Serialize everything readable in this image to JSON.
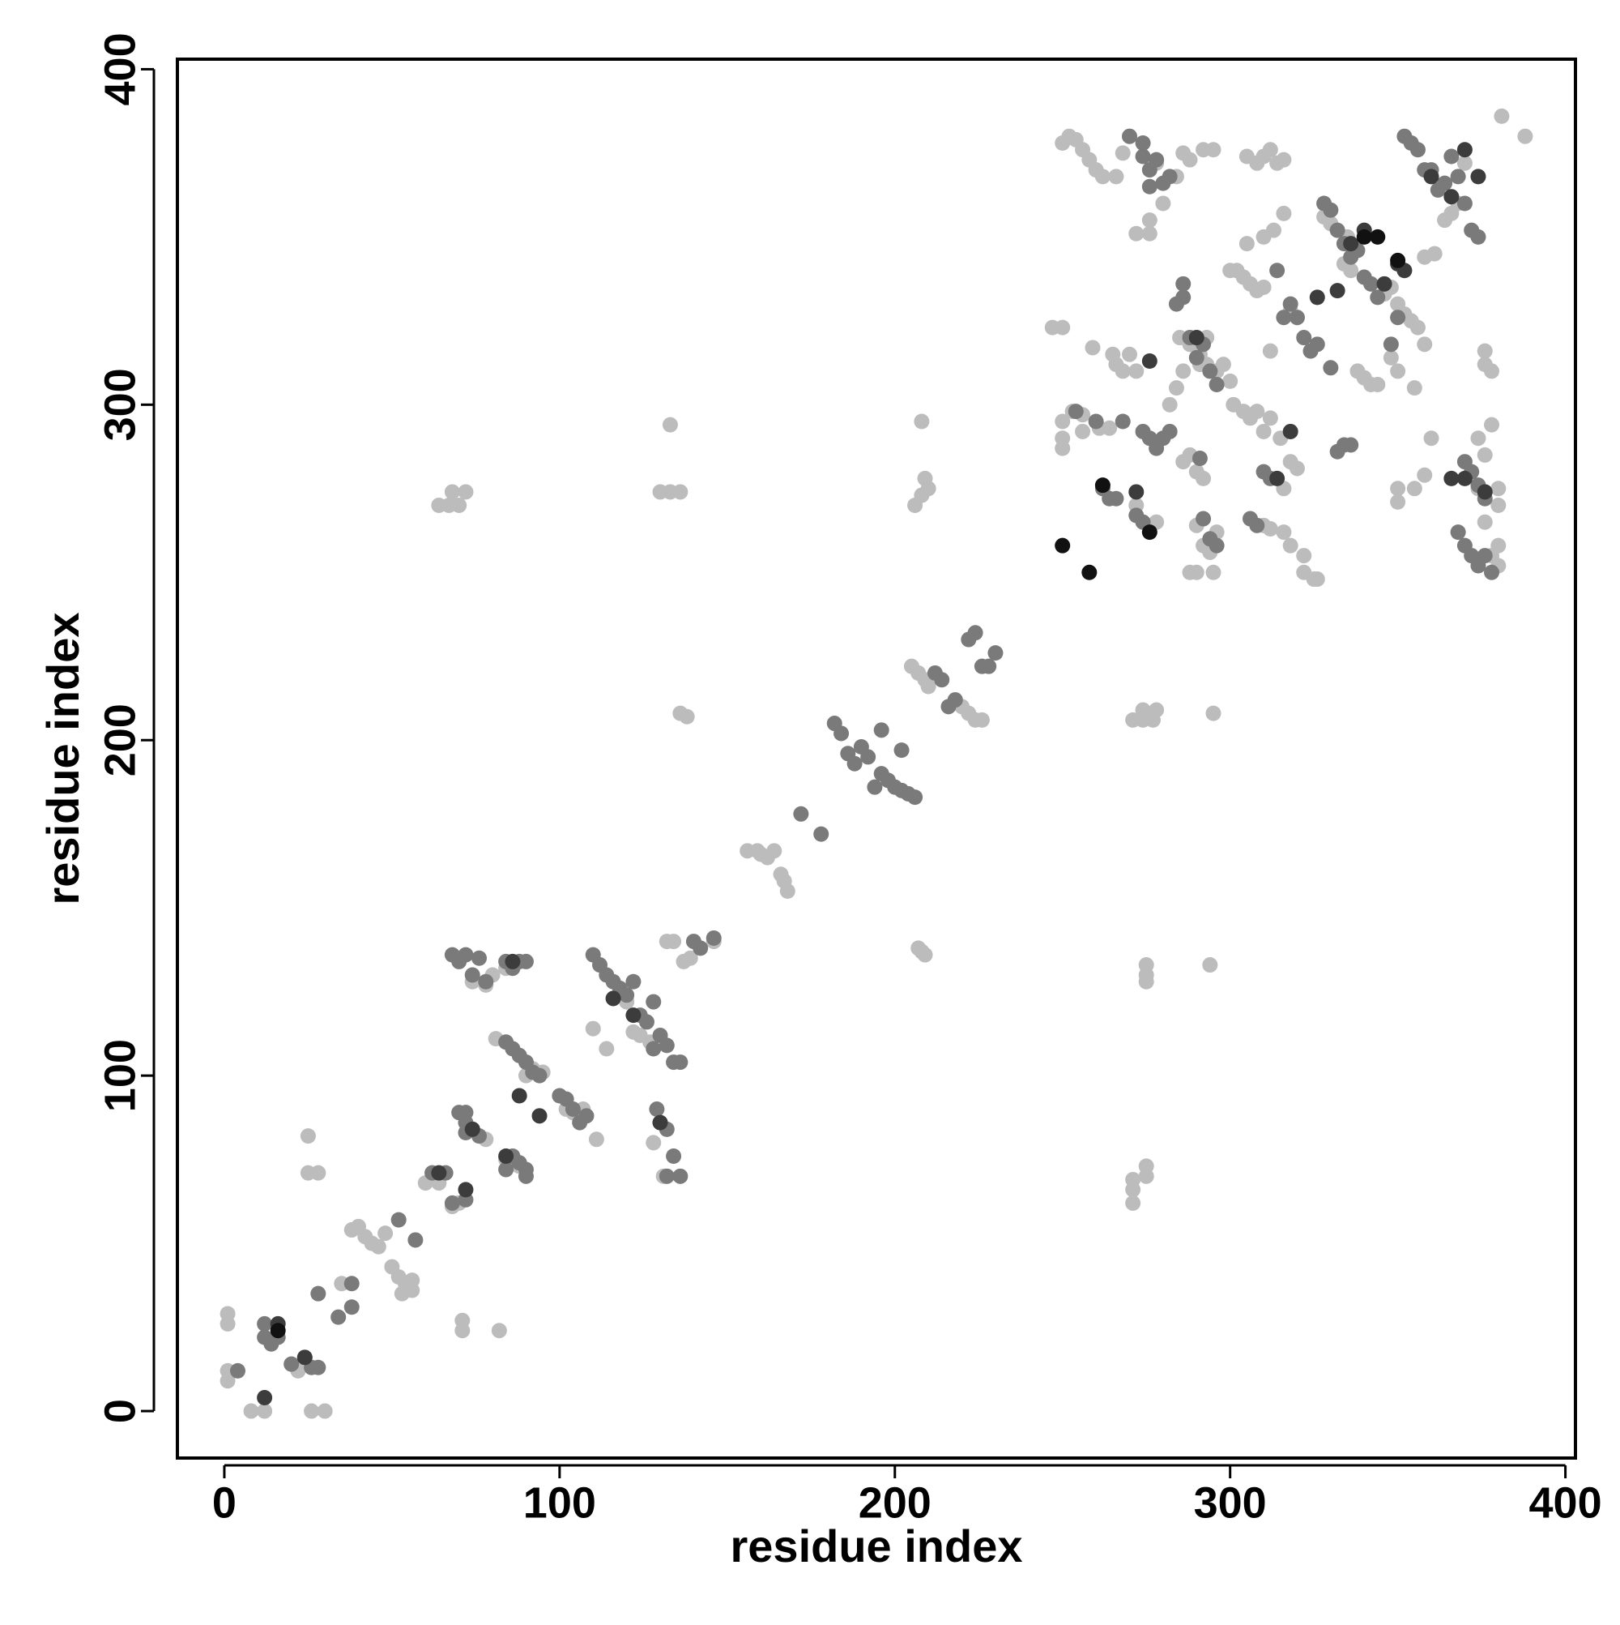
{
  "chart_data": {
    "type": "scatter",
    "x_label": "residue index",
    "y_label": "residue index",
    "xlim": [
      -14,
      403
    ],
    "ylim": [
      -14,
      403
    ],
    "xticks": [
      0,
      100,
      200,
      300,
      400
    ],
    "yticks": [
      0,
      100,
      200,
      300,
      400
    ],
    "grid": false,
    "series": [
      {
        "color": "#bcbcbc",
        "x": [
          1,
          1,
          1,
          1,
          8,
          12,
          26,
          30,
          25,
          25,
          28,
          20,
          22,
          35,
          38,
          40,
          42,
          44,
          46,
          48,
          50,
          52,
          54,
          56,
          56,
          53,
          60,
          64,
          68,
          70,
          71,
          71,
          82,
          81,
          74,
          78,
          80,
          84,
          76,
          78,
          70,
          84,
          86,
          88,
          90,
          92,
          95,
          102,
          104,
          106,
          107,
          110,
          111,
          114,
          118,
          120,
          122,
          124,
          127,
          128,
          131,
          132,
          134,
          130,
          133,
          136,
          133,
          136,
          138,
          64,
          67,
          70,
          68,
          72,
          156,
          159,
          160,
          164,
          162,
          166,
          167,
          168,
          137,
          139,
          146,
          208,
          207,
          209,
          205,
          207,
          209,
          210,
          218,
          220,
          222,
          224,
          226,
          208,
          210,
          206,
          209,
          208,
          271,
          274,
          277,
          274,
          278,
          275,
          275,
          271,
          271,
          271,
          275,
          275,
          275,
          294,
          295
        ],
        "values": [
          29,
          26,
          12,
          9,
          0,
          0,
          0,
          0,
          82,
          71,
          71,
          14,
          12,
          38,
          54,
          55,
          52,
          50,
          49,
          53,
          43,
          40,
          38,
          36,
          39,
          35,
          68,
          68,
          61,
          62,
          27,
          24,
          24,
          111,
          128,
          127,
          130,
          132,
          82,
          81,
          135,
          75,
          74,
          73,
          100,
          102,
          101,
          90,
          89,
          87,
          90,
          114,
          81,
          108,
          125,
          122,
          113,
          112,
          110,
          80,
          70,
          140,
          140,
          274,
          274,
          274,
          294,
          208,
          207,
          270,
          270,
          270,
          274,
          274,
          167,
          167,
          166,
          167,
          165,
          160,
          158,
          155,
          134,
          135,
          140,
          137,
          138,
          136,
          222,
          220,
          218,
          216,
          212,
          210,
          208,
          206,
          206,
          273,
          275,
          270,
          278,
          295,
          206,
          206,
          206,
          209,
          209,
          70,
          73,
          62,
          66,
          69,
          133,
          130,
          128,
          133,
          208
        ]
      },
      {
        "color": "#bcbcbc",
        "x": [
          247,
          250,
          250,
          250,
          250,
          253,
          256,
          256,
          259,
          261,
          264,
          265,
          266,
          268,
          270,
          272,
          250,
          252,
          254,
          256,
          258,
          260,
          262,
          266,
          268,
          270,
          272,
          276,
          276,
          278,
          280,
          284,
          286,
          288,
          292,
          295,
          272,
          278,
          282,
          284,
          286,
          288,
          291,
          293,
          290,
          292,
          290,
          292,
          294,
          296,
          288,
          290,
          295,
          286,
          288,
          300,
          302,
          304,
          306,
          308,
          310,
          312,
          310,
          313,
          316,
          318,
          320,
          305,
          301,
          304,
          306,
          308,
          312,
          310,
          315,
          318,
          320,
          316,
          310,
          312,
          316,
          318,
          322,
          322,
          325,
          326,
          328,
          330,
          335,
          334,
          336,
          338,
          340,
          342,
          344,
          346,
          348,
          350,
          352,
          354,
          356,
          358,
          348,
          350,
          355,
          358,
          361,
          350,
          350,
          355,
          358,
          360,
          364,
          366,
          368,
          370,
          374,
          376,
          374,
          376,
          378,
          380,
          380,
          376,
          376,
          378,
          378,
          380,
          380,
          381,
          388,
          305,
          308,
          310,
          312,
          314,
          316,
          285,
          288,
          291,
          293,
          296,
          298,
          300
        ],
        "values": [
          323,
          323,
          295,
          290,
          287,
          298,
          297,
          292,
          317,
          293,
          293,
          315,
          312,
          310,
          315,
          310,
          378,
          380,
          379,
          376,
          373,
          370,
          368,
          368,
          375,
          380,
          351,
          351,
          355,
          372,
          360,
          368,
          375,
          373,
          376,
          376,
          270,
          265,
          300,
          305,
          310,
          320,
          312,
          312,
          280,
          278,
          264,
          258,
          256,
          262,
          250,
          250,
          250,
          283,
          285,
          340,
          340,
          338,
          336,
          334,
          335,
          316,
          350,
          352,
          357,
          328,
          326,
          348,
          300,
          298,
          296,
          298,
          296,
          292,
          290,
          283,
          281,
          275,
          264,
          263,
          262,
          258,
          255,
          250,
          248,
          248,
          356,
          354,
          350,
          342,
          340,
          310,
          308,
          306,
          306,
          333,
          335,
          330,
          327,
          325,
          323,
          318,
          314,
          310,
          305,
          344,
          345,
          271,
          275,
          275,
          279,
          290,
          355,
          357,
          360,
          372,
          275,
          285,
          290,
          265,
          255,
          252,
          258,
          312,
          316,
          310,
          294,
          275,
          270,
          386,
          380,
          374,
          372,
          374,
          376,
          372,
          373,
          320,
          318,
          315,
          320,
          310,
          312,
          307
        ]
      },
      {
        "color": "#7a7a7a",
        "x": [
          4,
          12,
          12,
          14,
          16,
          20,
          24,
          26,
          28,
          28,
          34,
          38,
          38,
          52,
          57,
          62,
          66,
          68,
          72,
          72,
          70,
          72,
          72,
          74,
          76,
          68,
          70,
          72,
          74,
          76,
          78,
          84,
          86,
          88,
          90,
          84,
          86,
          88,
          90,
          92,
          94,
          84,
          86,
          88,
          90,
          90,
          100,
          102,
          104,
          106,
          108,
          110,
          112,
          114,
          116,
          118,
          120,
          122,
          124,
          126,
          128,
          128,
          130,
          132,
          134,
          136,
          129,
          130,
          132,
          134,
          132,
          136,
          140,
          146,
          142,
          172,
          178,
          182,
          184,
          186,
          188,
          190,
          192,
          194,
          196,
          198,
          200,
          202,
          204,
          206,
          196,
          202,
          212,
          214,
          216,
          218,
          222,
          224,
          226,
          228,
          230,
          254,
          260,
          262,
          264,
          266,
          268,
          270,
          274,
          276,
          274,
          276,
          278,
          280,
          282,
          274,
          276,
          278,
          280,
          282,
          272,
          274,
          284,
          286,
          286,
          288,
          290,
          292,
          294,
          296,
          291,
          292,
          294,
          296,
          306,
          308,
          310,
          312,
          314,
          316,
          318,
          320,
          322,
          324,
          326,
          328,
          330,
          332,
          334,
          336,
          338,
          330,
          332,
          334,
          336,
          340,
          342,
          344,
          348,
          350,
          352,
          354,
          356,
          360,
          362,
          364,
          366,
          368,
          370,
          372,
          374,
          370,
          372,
          374,
          376,
          368,
          370,
          372,
          374,
          376,
          378,
          358
        ],
        "values": [
          12,
          22,
          26,
          20,
          22,
          14,
          16,
          13,
          13,
          35,
          28,
          38,
          31,
          57,
          51,
          71,
          71,
          62,
          63,
          89,
          89,
          86,
          83,
          84,
          82,
          136,
          134,
          136,
          130,
          135,
          128,
          134,
          132,
          134,
          134,
          110,
          108,
          106,
          104,
          101,
          100,
          72,
          76,
          74,
          72,
          70,
          94,
          93,
          90,
          86,
          88,
          136,
          133,
          130,
          128,
          126,
          124,
          128,
          118,
          116,
          122,
          108,
          112,
          109,
          104,
          104,
          90,
          86,
          84,
          76,
          70,
          70,
          140,
          141,
          138,
          178,
          172,
          205,
          202,
          196,
          193,
          198,
          195,
          186,
          190,
          188,
          186,
          185,
          184,
          183,
          203,
          197,
          220,
          218,
          210,
          212,
          230,
          232,
          222,
          222,
          226,
          298,
          295,
          275,
          272,
          272,
          295,
          380,
          374,
          370,
          378,
          365,
          373,
          366,
          368,
          292,
          290,
          287,
          290,
          292,
          267,
          265,
          330,
          332,
          336,
          320,
          314,
          318,
          310,
          306,
          284,
          266,
          260,
          258,
          266,
          264,
          280,
          278,
          340,
          326,
          330,
          326,
          320,
          316,
          318,
          360,
          358,
          352,
          348,
          344,
          346,
          311,
          286,
          288,
          288,
          338,
          336,
          332,
          318,
          326,
          380,
          378,
          376,
          370,
          364,
          366,
          374,
          368,
          360,
          352,
          350,
          283,
          280,
          276,
          272,
          262,
          258,
          255,
          252,
          255,
          250,
          370
        ]
      },
      {
        "color": "#3c3c3c",
        "x": [
          16,
          24,
          12,
          64,
          72,
          74,
          88,
          94,
          86,
          84,
          116,
          122,
          130,
          276,
          290,
          326,
          332,
          336,
          340,
          346,
          350,
          352,
          360,
          366,
          370,
          374,
          272,
          314,
          318,
          366,
          370,
          376
        ],
        "values": [
          26,
          16,
          4,
          71,
          66,
          84,
          94,
          88,
          134,
          76,
          123,
          118,
          86,
          313,
          320,
          332,
          334,
          348,
          352,
          336,
          342,
          340,
          368,
          362,
          376,
          368,
          274,
          278,
          292,
          278,
          278,
          274
        ]
      },
      {
        "color": "#111111",
        "x": [
          16,
          250,
          258,
          262,
          276,
          340,
          344,
          350
        ],
        "values": [
          24,
          258,
          250,
          276,
          262,
          350,
          350,
          343
        ]
      }
    ]
  }
}
